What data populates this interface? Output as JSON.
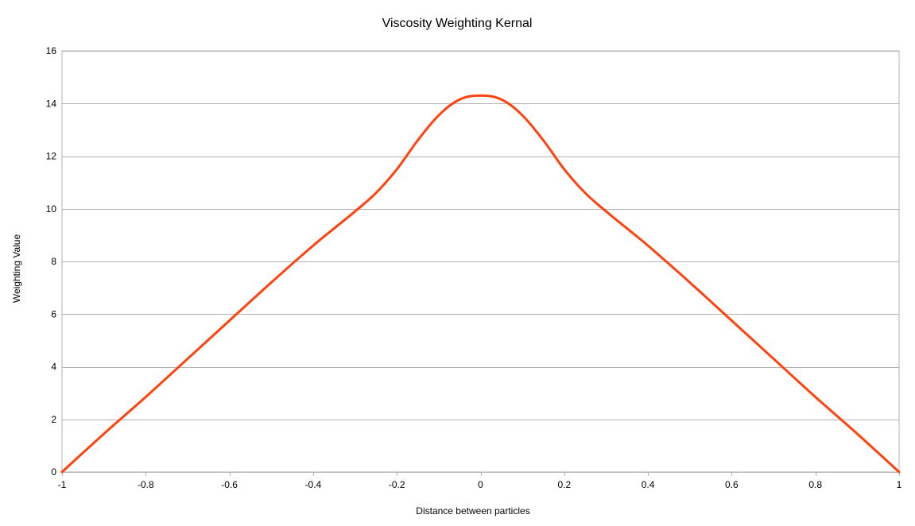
{
  "chart_data": {
    "type": "line",
    "title": "Viscosity Weighting Kernal",
    "xlabel": "Distance between particles",
    "ylabel": "Weighting Value",
    "xlim": [
      -1,
      1
    ],
    "ylim": [
      0,
      16
    ],
    "x_ticks": [
      -1,
      -0.8,
      -0.6,
      -0.4,
      -0.2,
      0,
      0.2,
      0.4,
      0.6,
      0.8,
      1
    ],
    "x_tick_labels": [
      "-1",
      "-0.8",
      "-0.6",
      "-0.4",
      "-0.2",
      "0",
      "0.2",
      "0.4",
      "0.6",
      "0.8",
      "1"
    ],
    "y_ticks": [
      0,
      2,
      4,
      6,
      8,
      10,
      12,
      14,
      16
    ],
    "y_tick_labels": [
      "0",
      "2",
      "4",
      "6",
      "8",
      "10",
      "12",
      "14",
      "16"
    ],
    "grid": "horizontal",
    "legend": "none",
    "series": [
      {
        "color": "#ff420e",
        "x": [
          -1,
          -0.9,
          -0.8,
          -0.7,
          -0.6,
          -0.5,
          -0.4,
          -0.35,
          -0.3,
          -0.25,
          -0.2,
          -0.15,
          -0.1,
          -0.05,
          0,
          0.05,
          0.1,
          0.15,
          0.2,
          0.25,
          0.3,
          0.35,
          0.4,
          0.5,
          0.6,
          0.7,
          0.8,
          0.9,
          1
        ],
        "y": [
          0,
          1.45,
          2.85,
          4.3,
          5.75,
          7.2,
          8.6,
          9.25,
          9.9,
          10.6,
          11.5,
          12.6,
          13.55,
          14.15,
          14.3,
          14.15,
          13.55,
          12.6,
          11.5,
          10.6,
          9.9,
          9.25,
          8.6,
          7.2,
          5.75,
          4.3,
          2.85,
          1.45,
          0
        ]
      }
    ]
  }
}
